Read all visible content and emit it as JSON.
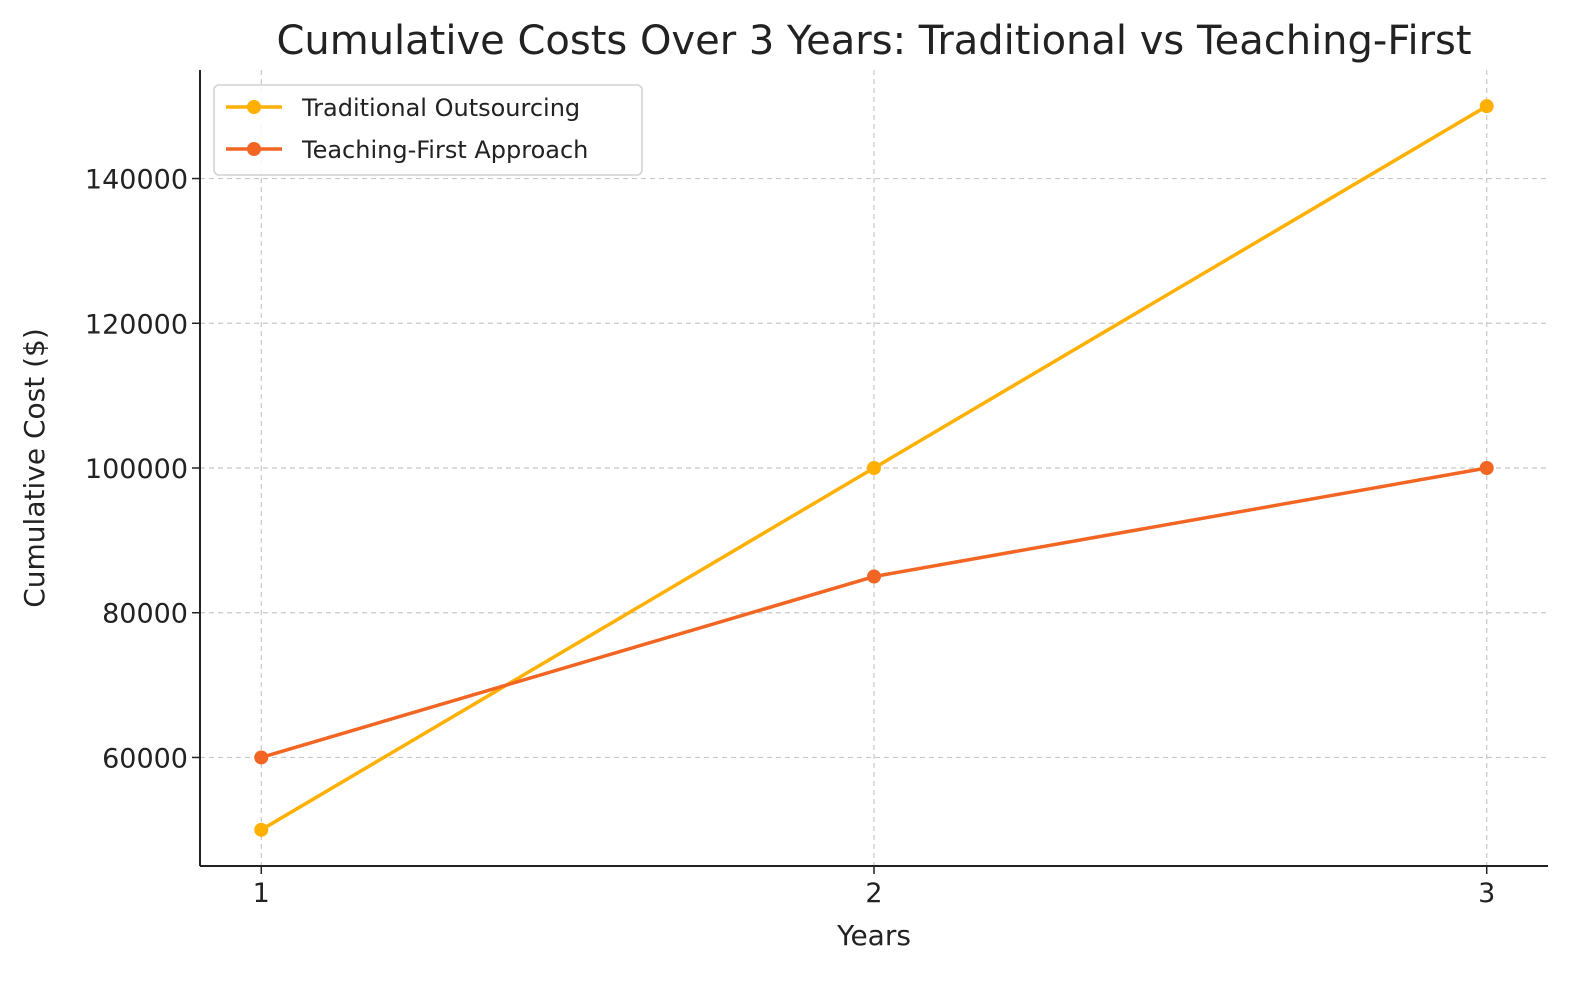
{
  "chart_data": {
    "type": "line",
    "title": "Cumulative Costs Over 3 Years: Traditional vs Teaching-First",
    "xlabel": "Years",
    "ylabel": "Cumulative Cost ($)",
    "x": [
      1,
      2,
      3
    ],
    "x_ticks": [
      "1",
      "2",
      "3"
    ],
    "y_ticks": [
      60000,
      80000,
      100000,
      120000,
      140000
    ],
    "xlim": [
      0.9,
      3.1
    ],
    "ylim": [
      45000,
      155000
    ],
    "grid": true,
    "legend_position": "top-left",
    "series": [
      {
        "name": "Traditional Outsourcing",
        "values": [
          50000,
          100000,
          150000
        ],
        "color": "#FFB000"
      },
      {
        "name": "Teaching-First Approach",
        "values": [
          60000,
          85000,
          100000
        ],
        "color": "#F26522"
      }
    ]
  }
}
